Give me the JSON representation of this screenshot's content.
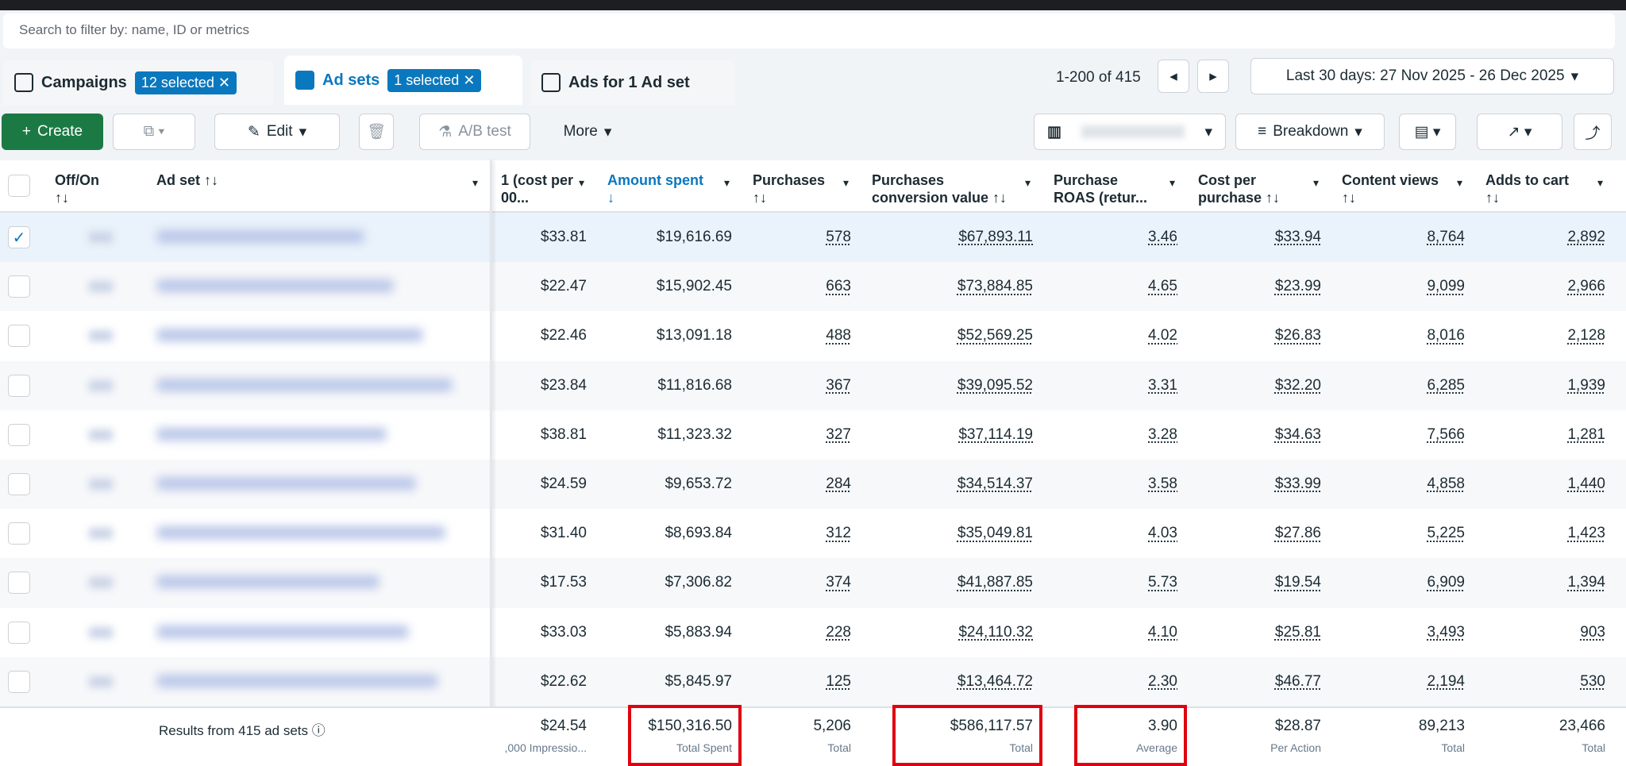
{
  "search": {
    "placeholder": "Search to filter by: name, ID or metrics"
  },
  "tabs": [
    {
      "label": "Campaigns",
      "badge": "12 selected",
      "active": false
    },
    {
      "label": "Ad sets",
      "badge": "1 selected",
      "active": true
    },
    {
      "label": "Ads for 1 Ad set",
      "active": false
    }
  ],
  "pagination": "1-200 of 415",
  "date_range": "Last 30 days: 27 Nov 2025 - 26 Dec 2025",
  "toolbar": {
    "create": "Create",
    "edit": "Edit",
    "ab_test": "A/B test",
    "more": "More",
    "breakdown": "Breakdown"
  },
  "table": {
    "columns": [
      {
        "lines": [
          "Off/On",
          "↑↓"
        ]
      },
      {
        "lines": [
          "Ad set ↑↓"
        ]
      },
      {
        "lines": [
          "1 (cost per",
          "00..."
        ],
        "dotted": false
      },
      {
        "lines": [
          "Amount spent",
          "↓"
        ],
        "dotted": false,
        "accent": true
      },
      {
        "lines": [
          "Purchases",
          "↑↓"
        ],
        "dotted": true
      },
      {
        "lines": [
          "Purchases",
          "conversion value ↑↓"
        ],
        "dotted": true
      },
      {
        "lines": [
          "Purchase",
          "ROAS (retur..."
        ],
        "dotted": true
      },
      {
        "lines": [
          "Cost per",
          "purchase ↑↓"
        ],
        "dotted": true
      },
      {
        "lines": [
          "Content views",
          "↑↓"
        ],
        "dotted": true
      },
      {
        "lines": [
          "Adds to cart",
          "↑↓"
        ],
        "dotted": true
      }
    ],
    "rows": [
      {
        "checked": true,
        "cells": [
          "$33.81",
          "$19,616.69",
          "578",
          "$67,893.11",
          "3.46",
          "$33.94",
          "8,764",
          "2,892"
        ]
      },
      {
        "checked": false,
        "cells": [
          "$22.47",
          "$15,902.45",
          "663",
          "$73,884.85",
          "4.65",
          "$23.99",
          "9,099",
          "2,966"
        ]
      },
      {
        "checked": false,
        "cells": [
          "$22.46",
          "$13,091.18",
          "488",
          "$52,569.25",
          "4.02",
          "$26.83",
          "8,016",
          "2,128"
        ]
      },
      {
        "checked": false,
        "cells": [
          "$23.84",
          "$11,816.68",
          "367",
          "$39,095.52",
          "3.31",
          "$32.20",
          "6,285",
          "1,939"
        ]
      },
      {
        "checked": false,
        "cells": [
          "$38.81",
          "$11,323.32",
          "327",
          "$37,114.19",
          "3.28",
          "$34.63",
          "7,566",
          "1,281"
        ]
      },
      {
        "checked": false,
        "cells": [
          "$24.59",
          "$9,653.72",
          "284",
          "$34,514.37",
          "3.58",
          "$33.99",
          "4,858",
          "1,440"
        ]
      },
      {
        "checked": false,
        "cells": [
          "$31.40",
          "$8,693.84",
          "312",
          "$35,049.81",
          "4.03",
          "$27.86",
          "5,225",
          "1,423"
        ]
      },
      {
        "checked": false,
        "cells": [
          "$17.53",
          "$7,306.82",
          "374",
          "$41,887.85",
          "5.73",
          "$19.54",
          "6,909",
          "1,394"
        ]
      },
      {
        "checked": false,
        "cells": [
          "$33.03",
          "$5,883.94",
          "228",
          "$24,110.32",
          "4.10",
          "$25.81",
          "3,493",
          "903"
        ]
      },
      {
        "checked": false,
        "cells": [
          "$22.62",
          "$5,845.97",
          "125",
          "$13,464.72",
          "2.30",
          "$46.77",
          "2,194",
          "530"
        ]
      }
    ],
    "footer": {
      "label": "Results from 415 ad sets",
      "cells": [
        {
          "value": "$24.54",
          "label": ",000 Impressio...",
          "highlighted": false
        },
        {
          "value": "$150,316.50",
          "label": "Total Spent",
          "highlighted": true
        },
        {
          "value": "5,206",
          "label": "Total",
          "highlighted": false
        },
        {
          "value": "$586,117.57",
          "label": "Total",
          "highlighted": true
        },
        {
          "value": "3.90",
          "label": "Average",
          "highlighted": true
        },
        {
          "value": "$28.87",
          "label": "Per Action",
          "highlighted": false
        },
        {
          "value": "89,213",
          "label": "Total",
          "highlighted": false
        },
        {
          "value": "23,466",
          "label": "Total",
          "highlighted": false
        }
      ]
    }
  }
}
